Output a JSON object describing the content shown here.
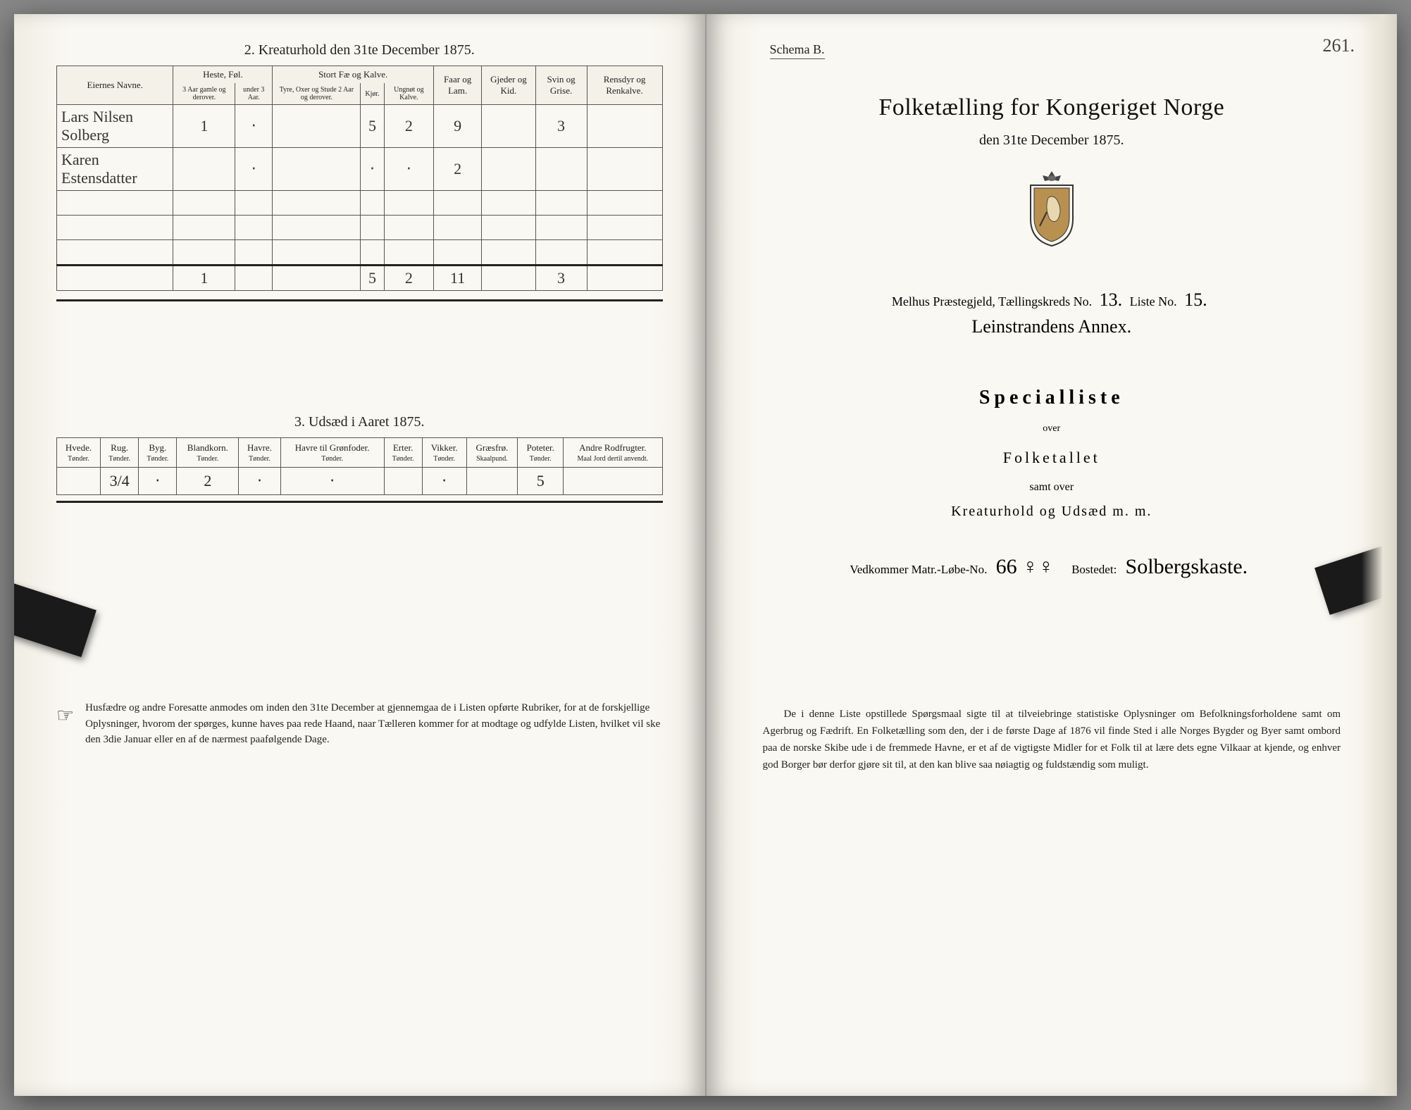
{
  "left": {
    "section2_title": "2.  Kreaturhold den 31te December 1875.",
    "table2": {
      "col_owner": "Eiernes Navne.",
      "grp_horse": "Heste, Føl.",
      "grp_cattle": "Stort Fæ og Kalve.",
      "col_sheep": "Faar og Lam.",
      "col_goat": "Gjeder og Kid.",
      "col_pig": "Svin og Grise.",
      "col_rein": "Rensdyr og Renkalve.",
      "sub_h1": "3 Aar gamle og derover.",
      "sub_h2": "under 3 Aar.",
      "sub_c1": "Tyre, Oxer og Stude 2 Aar og derover.",
      "sub_c2": "Kjør.",
      "sub_c3": "Ungnøt og Kalve.",
      "rows": [
        {
          "name": "Lars Nilsen Solberg",
          "h1": "1",
          "h2": "‧",
          "c1": "",
          "c2": "5",
          "c3": "2",
          "sheep": "9",
          "goat": "",
          "pig": "3",
          "rein": ""
        },
        {
          "name": "Karen Estensdatter",
          "h1": "",
          "h2": "‧",
          "c1": "",
          "c2": "‧",
          "c3": "‧",
          "sheep": "2",
          "goat": "",
          "pig": "",
          "rein": ""
        }
      ],
      "totals": {
        "h1": "1",
        "h2": "",
        "c1": "",
        "c2": "5",
        "c3": "2",
        "sheep": "11",
        "goat": "",
        "pig": "3",
        "rein": ""
      }
    },
    "section3_title": "3.  Udsæd i Aaret 1875.",
    "table3": {
      "cols": [
        {
          "h": "Hvede.",
          "s": "Tønder."
        },
        {
          "h": "Rug.",
          "s": "Tønder."
        },
        {
          "h": "Byg.",
          "s": "Tønder."
        },
        {
          "h": "Blandkorn.",
          "s": "Tønder."
        },
        {
          "h": "Havre.",
          "s": "Tønder."
        },
        {
          "h": "Havre til Grønfoder.",
          "s": "Tønder."
        },
        {
          "h": "Erter.",
          "s": "Tønder."
        },
        {
          "h": "Vikker.",
          "s": "Tønder."
        },
        {
          "h": "Græsfrø.",
          "s": "Skaalpund."
        },
        {
          "h": "Poteter.",
          "s": "Tønder."
        },
        {
          "h": "Andre Rodfrugter.",
          "s": "Maal Jord dertil anvendt."
        }
      ],
      "row": [
        "",
        "3/4",
        "‧",
        "2",
        "‧",
        "‧",
        "",
        "‧",
        "",
        "5",
        ""
      ]
    },
    "footnote": "Husfædre og andre Foresatte anmodes om inden den 31te December at gjennemgaa de i Listen opførte Rubriker, for at de forskjellige Oplysninger, hvorom der spørges, kunne haves paa rede Haand, naar Tælleren kommer for at modtage og udfylde Listen, hvilket vil ske den 3die Januar eller en af de nærmest paafølgende Dage."
  },
  "right": {
    "page_no": "261.",
    "schema": "Schema B.",
    "title": "Folketælling for Kongeriget Norge",
    "subtitle": "den 31te December 1875.",
    "parish_line_pre": "Melhus Præstegjeld, Tællingskreds No.",
    "kreds_no": "13.",
    "liste_label": "Liste No.",
    "liste_no": "15.",
    "annex": "Leinstrandens Annex.",
    "specialliste": "Specialliste",
    "over": "over",
    "folketallet": "Folketallet",
    "samt": "samt over",
    "kreatur": "Kreaturhold og Udsæd m. m.",
    "vedkommer_pre": "Vedkommer Matr.-Løbe-No.",
    "matr_no": "66 ♀♀",
    "bostedet_label": "Bostedet:",
    "bostedet": "Solbergskaste.",
    "footnote": "De i denne Liste opstillede Spørgsmaal sigte til at tilveiebringe statistiske Oplysninger om Befolkningsforholdene samt om Agerbrug og Fædrift. En Folketælling som den, der i de første Dage af 1876 vil finde Sted i alle Norges Bygder og Byer samt ombord paa de norske Skibe ude i de fremmede Havne, er et af de vigtigste Midler for et Folk til at lære dets egne Vilkaar at kjende, og enhver god Borger bør derfor gjøre sit til, at den kan blive saa nøiagtig og fuldstændig som muligt."
  }
}
